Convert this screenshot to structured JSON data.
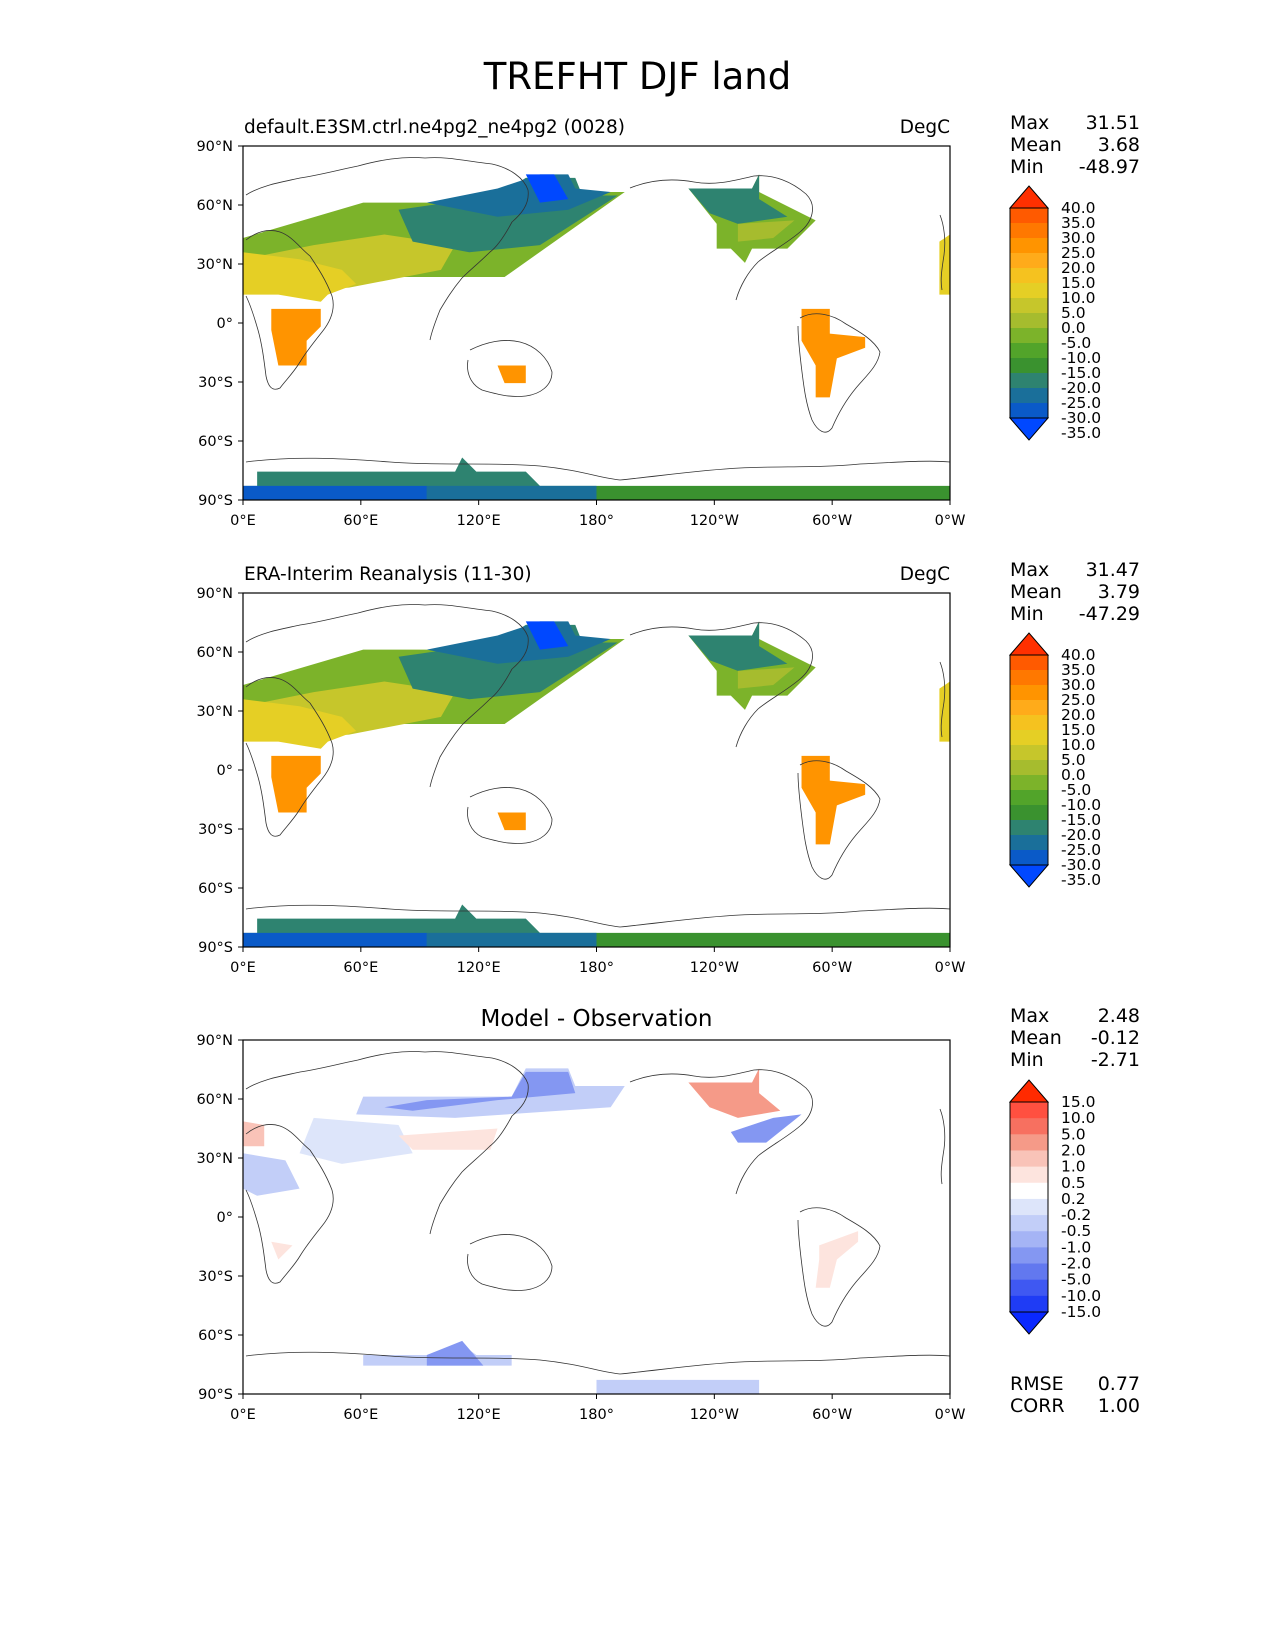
{
  "figure": {
    "title": "TREFHT DJF land"
  },
  "colors": {
    "test_levels": [
      "#ff3000",
      "#ff5a00",
      "#ff7800",
      "#ff9400",
      "#ffab1a",
      "#f5c21f",
      "#e5cf25",
      "#c6c62b",
      "#a6bc2e",
      "#7cb32a",
      "#52a42a",
      "#3a922f",
      "#2e8370",
      "#1a6f9a",
      "#0a5ac8",
      "#0048ff"
    ],
    "diff_levels": [
      "#ff2a00",
      "#ff5040",
      "#f77060",
      "#f59a88",
      "#f9c3b8",
      "#fde4de",
      "#ffffff",
      "#dde5fa",
      "#c2cef8",
      "#a5b4f5",
      "#8497f2",
      "#6278ef",
      "#3f58f2",
      "#1f3cf5",
      "#0a28ff"
    ]
  },
  "panels": [
    {
      "id": "test",
      "title": "default.E3SM.ctrl.ne4pg2_ne4pg2 (0028)",
      "units": "DegC",
      "stats": [
        {
          "label": "Max",
          "value": "31.51"
        },
        {
          "label": "Mean",
          "value": "3.68"
        },
        {
          "label": "Min",
          "value": "-48.97"
        }
      ],
      "colorbar": {
        "ticks": [
          "40.0",
          "35.0",
          "30.0",
          "25.0",
          "20.0",
          "15.0",
          "10.0",
          "5.0",
          "0.0",
          "-5.0",
          "-10.0",
          "-15.0",
          "-20.0",
          "-25.0",
          "-30.0",
          "-35.0"
        ]
      }
    },
    {
      "id": "reference",
      "title": "ERA-Interim Reanalysis (11-30)",
      "units": "DegC",
      "stats": [
        {
          "label": "Max",
          "value": "31.47"
        },
        {
          "label": "Mean",
          "value": "3.79"
        },
        {
          "label": "Min",
          "value": "-47.29"
        }
      ],
      "colorbar": {
        "ticks": [
          "40.0",
          "35.0",
          "30.0",
          "25.0",
          "20.0",
          "15.0",
          "10.0",
          "5.0",
          "0.0",
          "-5.0",
          "-10.0",
          "-15.0",
          "-20.0",
          "-25.0",
          "-30.0",
          "-35.0"
        ]
      }
    },
    {
      "id": "difference",
      "title": "Model - Observation",
      "units": "",
      "stats": [
        {
          "label": "Max",
          "value": "2.48"
        },
        {
          "label": "Mean",
          "value": "-0.12"
        },
        {
          "label": "Min",
          "value": "-2.71"
        }
      ],
      "colorbar": {
        "ticks": [
          "15.0",
          "10.0",
          "5.0",
          "2.0",
          "1.0",
          "0.5",
          "0.2",
          "-0.2",
          "-0.5",
          "-1.0",
          "-2.0",
          "-5.0",
          "-10.0",
          "-15.0"
        ]
      },
      "metrics": [
        {
          "label": "RMSE",
          "value": "0.77"
        },
        {
          "label": "CORR",
          "value": "1.00"
        }
      ]
    }
  ],
  "axes": {
    "lat_ticks": [
      "90°N",
      "60°N",
      "30°N",
      "0°",
      "30°S",
      "60°S",
      "90°S"
    ],
    "lon_ticks": [
      "0°E",
      "60°E",
      "120°E",
      "180°",
      "120°W",
      "60°W",
      "0°W"
    ]
  }
}
